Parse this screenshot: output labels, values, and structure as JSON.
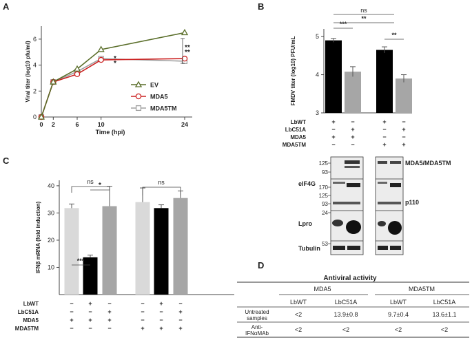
{
  "panels": {
    "a": "A",
    "b": "B",
    "c": "C",
    "d": "D"
  },
  "chart_data": [
    {
      "id": "A",
      "type": "line",
      "title": "",
      "xlabel": "Time (hpi)",
      "ylabel": "Viral titer (log10 pfu/ml)",
      "x": [
        0,
        2,
        6,
        10,
        24
      ],
      "xticks": [
        "0",
        "2",
        "6",
        "10",
        "24"
      ],
      "yticks": [
        "0",
        "2",
        "4",
        "6"
      ],
      "xlim": [
        0,
        24
      ],
      "ylim": [
        0,
        7
      ],
      "series": [
        {
          "name": "EV",
          "color": "#5a6e2a",
          "marker": "triangle",
          "values": [
            0,
            2.7,
            3.7,
            5.2,
            6.5
          ]
        },
        {
          "name": "MDA5",
          "color": "#cc2222",
          "marker": "circle",
          "values": [
            0,
            2.7,
            3.3,
            4.4,
            4.5
          ]
        },
        {
          "name": "MDA5TM",
          "color": "#a0a0a0",
          "marker": "square",
          "values": [
            0,
            2.7,
            3.5,
            4.5,
            4.3
          ]
        }
      ],
      "annotations": {
        "t10_gray": "*",
        "t10_red": "*",
        "t24_gray": "**",
        "t24_red": "**",
        "gray_color": "#7fa8c8",
        "red_color": "#cc2222"
      }
    },
    {
      "id": "B",
      "type": "bar",
      "title": "",
      "ylabel": "FMDV titer (log10) PFU/mL",
      "yticks": [
        "3",
        "4",
        "5"
      ],
      "ylim": [
        3,
        5.2
      ],
      "values": [
        4.9,
        4.08,
        4.65,
        3.9
      ],
      "errors": [
        0.05,
        0.13,
        0.08,
        0.1
      ],
      "colors": [
        "#000000",
        "#a6a6a6",
        "#000000",
        "#a6a6a6"
      ],
      "significance": [
        "***",
        "**",
        "**",
        "ns"
      ],
      "rows": [
        {
          "label": "LbWT",
          "marks": [
            "+",
            "−",
            "+",
            "−"
          ]
        },
        {
          "label": "LbC51A",
          "marks": [
            "−",
            "+",
            "−",
            "+"
          ]
        },
        {
          "label": "MDA5",
          "marks": [
            "+",
            "+",
            "−",
            "−"
          ]
        },
        {
          "label": "MDA5TM",
          "marks": [
            "−",
            "−",
            "+",
            "+"
          ]
        }
      ]
    },
    {
      "id": "C",
      "type": "bar",
      "title": "",
      "ylabel": "IFNβ mRNA (fold induction)",
      "yticks": [
        "10",
        "20",
        "30",
        "40"
      ],
      "ylim": [
        0,
        42
      ],
      "values": [
        31.8,
        13.7,
        32.5,
        34,
        31.8,
        35.5
      ],
      "errors": [
        1.5,
        0.8,
        7.3,
        5.2,
        1.2,
        2.6
      ],
      "colors": [
        "#d9d9d9",
        "#000000",
        "#a6a6a6",
        "#d9d9d9",
        "#000000",
        "#a6a6a6"
      ],
      "significance": [
        "***",
        "*",
        "ns",
        "ns"
      ],
      "rows": [
        {
          "label": "LbWT",
          "marks": [
            "−",
            "+",
            "−",
            "−",
            "+",
            "−"
          ]
        },
        {
          "label": "LbC51A",
          "marks": [
            "−",
            "−",
            "+",
            "−",
            "−",
            "+"
          ]
        },
        {
          "label": "MDA5",
          "marks": [
            "+",
            "+",
            "+",
            "−",
            "−",
            "−"
          ]
        },
        {
          "label": "MDA5TM",
          "marks": [
            "−",
            "−",
            "−",
            "+",
            "+",
            "+"
          ]
        }
      ]
    }
  ],
  "blot": {
    "mw": [
      "125",
      "93",
      "170",
      "125",
      "93",
      "24",
      "53"
    ],
    "labels": {
      "mda5": "MDA5/MDA5TM",
      "eif4g": "eIF4G",
      "p110": "p110",
      "lpro": "Lpro",
      "tubulin": "Tubulin"
    }
  },
  "table_d": {
    "title": "Antiviral activity",
    "group1": "MDA5",
    "group2": "MDA5TM",
    "cols": [
      "LbWT",
      "LbC51A",
      "LbWT",
      "LbC51A"
    ],
    "row1_label1": "Untreated",
    "row1_label2": "samples",
    "row1": [
      "<2",
      "13.9±0.8",
      "9.7±0.4",
      "13.6±1.1"
    ],
    "row2_label1": "Anti-",
    "row2_label2": "IFNαMAb",
    "row2": [
      "<2",
      "<2",
      "<2",
      "<2"
    ]
  }
}
